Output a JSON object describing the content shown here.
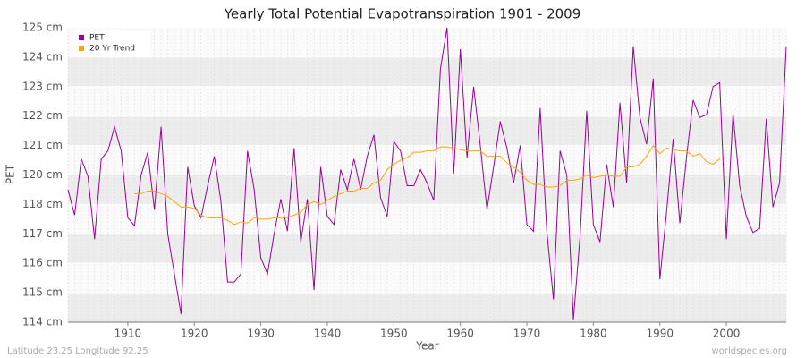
{
  "chart_data": {
    "type": "line",
    "title": "Yearly Total Potential Evapotranspiration 1901 - 2009",
    "x_label": "Year",
    "y_label": "PET",
    "footer_left": "Latitude 23.25 Longitude 92.25",
    "footer_right": "worldspecies.org",
    "legend_position": "upper left",
    "grid": true,
    "x": [
      1901,
      1902,
      1903,
      1904,
      1905,
      1906,
      1907,
      1908,
      1909,
      1910,
      1911,
      1912,
      1913,
      1914,
      1915,
      1916,
      1917,
      1918,
      1919,
      1920,
      1921,
      1922,
      1923,
      1924,
      1925,
      1926,
      1927,
      1928,
      1929,
      1930,
      1931,
      1932,
      1933,
      1934,
      1935,
      1936,
      1937,
      1938,
      1939,
      1940,
      1941,
      1942,
      1943,
      1944,
      1945,
      1946,
      1947,
      1948,
      1949,
      1950,
      1951,
      1952,
      1953,
      1954,
      1955,
      1956,
      1957,
      1958,
      1959,
      1960,
      1961,
      1962,
      1963,
      1964,
      1965,
      1966,
      1967,
      1968,
      1969,
      1970,
      1971,
      1972,
      1973,
      1974,
      1975,
      1976,
      1977,
      1978,
      1979,
      1980,
      1981,
      1982,
      1983,
      1984,
      1985,
      1986,
      1987,
      1988,
      1989,
      1990,
      1991,
      1992,
      1993,
      1994,
      1995,
      1996,
      1997,
      1998,
      1999,
      2000,
      2001,
      2002,
      2003,
      2004,
      2005,
      2006,
      2007,
      2008,
      2009
    ],
    "series": [
      {
        "name": "PET",
        "color": "#990099",
        "values": [
          118.95,
          118.0,
          120.1,
          119.45,
          117.1,
          120.1,
          120.4,
          121.3,
          120.4,
          117.9,
          117.6,
          119.5,
          120.35,
          118.2,
          121.3,
          117.3,
          115.8,
          114.3,
          119.8,
          118.35,
          117.9,
          119.1,
          120.2,
          118.5,
          115.5,
          115.5,
          115.8,
          120.4,
          118.95,
          116.4,
          115.8,
          117.3,
          118.6,
          117.4,
          120.5,
          117.0,
          118.6,
          115.2,
          119.8,
          117.95,
          117.65,
          119.7,
          118.95,
          120.1,
          118.95,
          120.2,
          121.0,
          118.65,
          117.95,
          120.75,
          120.4,
          119.1,
          119.1,
          119.7,
          119.2,
          118.55,
          123.45,
          125.0,
          119.55,
          124.2,
          120.15,
          122.8,
          120.6,
          118.2,
          119.8,
          121.5,
          120.5,
          119.2,
          120.6,
          117.65,
          117.4,
          122.0,
          117.4,
          114.85,
          120.4,
          119.5,
          114.1,
          117.2,
          121.9,
          117.65,
          117.0,
          119.9,
          118.3,
          122.2,
          119.2,
          124.3,
          121.65,
          120.65,
          123.1,
          115.6,
          118.1,
          120.85,
          117.7,
          120.15,
          122.3,
          121.65,
          121.75,
          122.8,
          122.95,
          117.1,
          121.8,
          119.1,
          117.95,
          117.35,
          117.5,
          121.6,
          118.3,
          119.2,
          124.3
        ]
      },
      {
        "name": "20 Yr Trend",
        "color": "#ffa500",
        "values": [
          null,
          null,
          null,
          null,
          null,
          null,
          null,
          null,
          null,
          null,
          118.8,
          118.8,
          118.9,
          118.9,
          118.8,
          118.7,
          118.5,
          118.3,
          118.3,
          118.25,
          118.0,
          117.9,
          117.9,
          117.9,
          117.8,
          117.65,
          117.75,
          117.7,
          117.9,
          117.85,
          117.85,
          117.9,
          117.9,
          117.9,
          118.0,
          118.1,
          118.4,
          118.5,
          118.4,
          118.55,
          118.7,
          118.8,
          118.9,
          118.9,
          119.0,
          119.0,
          119.2,
          119.3,
          119.7,
          119.9,
          120.05,
          120.15,
          120.35,
          120.35,
          120.4,
          120.4,
          120.55,
          120.55,
          120.5,
          120.45,
          120.4,
          120.4,
          120.4,
          120.2,
          120.2,
          120.2,
          119.95,
          119.8,
          119.6,
          119.3,
          119.15,
          119.15,
          119.05,
          119.05,
          119.1,
          119.3,
          119.3,
          119.35,
          119.5,
          119.4,
          119.45,
          119.5,
          119.45,
          119.45,
          119.8,
          119.8,
          119.9,
          120.2,
          120.6,
          120.3,
          120.5,
          120.45,
          120.4,
          120.4,
          120.2,
          120.3,
          120.0,
          119.9,
          120.1,
          null,
          null,
          null,
          null,
          null,
          null,
          null,
          null,
          null,
          null
        ]
      }
    ],
    "xlim": [
      1901,
      2009
    ],
    "xticks": [
      1910,
      1920,
      1930,
      1940,
      1950,
      1960,
      1970,
      1980,
      1990,
      2000
    ],
    "ylim": [
      114,
      125
    ],
    "yticks": [
      {
        "value": 125,
        "label": "125 cm"
      },
      {
        "value": 123.9,
        "label": "124 cm"
      },
      {
        "value": 122.8,
        "label": "123 cm"
      },
      {
        "value": 121.7,
        "label": "122 cm"
      },
      {
        "value": 120.6,
        "label": "121 cm"
      },
      {
        "value": 119.5,
        "label": "120 cm"
      },
      {
        "value": 118.4,
        "label": "118 cm"
      },
      {
        "value": 117.3,
        "label": "117 cm"
      },
      {
        "value": 116.2,
        "label": "116 cm"
      },
      {
        "value": 115.1,
        "label": "115 cm"
      },
      {
        "value": 114,
        "label": "114 cm"
      }
    ]
  }
}
